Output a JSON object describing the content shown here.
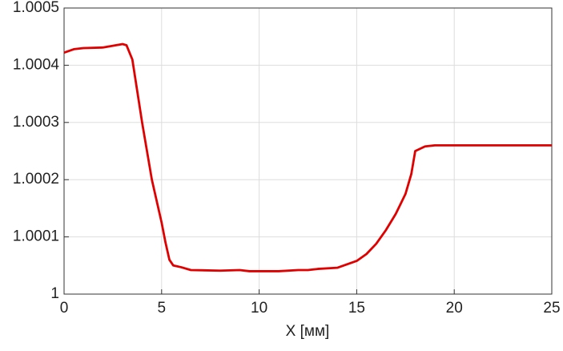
{
  "chart_data": {
    "type": "line",
    "x_label": "X [мм]",
    "x": [
      0,
      0.5,
      1,
      2,
      2.5,
      3,
      3.2,
      3.5,
      4,
      4.5,
      5,
      5.2,
      5.4,
      5.6,
      6,
      6.5,
      8,
      9,
      9.5,
      11,
      12,
      12.5,
      13,
      14,
      15,
      15.5,
      16,
      16.5,
      17,
      17.5,
      17.8,
      18,
      18.5,
      19,
      25
    ],
    "series": [
      {
        "color": "#e00000",
        "values": [
          1.000422,
          1.000428,
          1.00043,
          1.000431,
          1.000434,
          1.000437,
          1.000435,
          1.00041,
          1.0003,
          1.0002,
          1.000125,
          1.00009,
          1.00006,
          1.00005,
          1.000047,
          1.000042,
          1.000041,
          1.000042,
          1.00004,
          1.00004,
          1.000042,
          1.000042,
          1.000044,
          1.000046,
          1.000058,
          1.00007,
          1.000088,
          1.000112,
          1.00014,
          1.000175,
          1.00021,
          1.00025,
          1.000258,
          1.00026,
          1.00026
        ]
      }
    ],
    "xlim": [
      0,
      25
    ],
    "xticks": [
      0,
      5,
      10,
      15,
      20,
      25
    ],
    "ylim": [
      1,
      1.0005
    ],
    "yticks": [
      1,
      1.0001,
      1.0002,
      1.0003,
      1.0004,
      1.0005
    ],
    "grid": true
  }
}
